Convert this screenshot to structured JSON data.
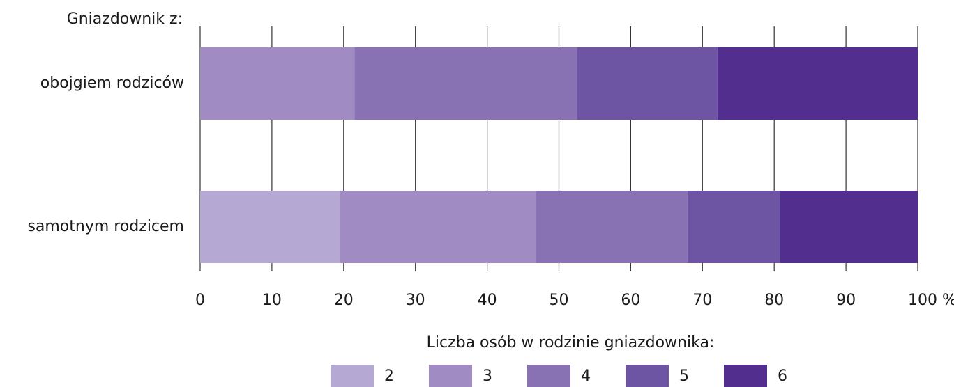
{
  "chart_data": {
    "type": "stacked_bar_horizontal",
    "y_axis_title": "Gniazdownik z:",
    "categories": [
      "obojgiem rodziców",
      "samotnym rodzicem"
    ],
    "series": [
      {
        "name": "2",
        "color": "#b5a9d3",
        "values": [
          0,
          19.5
        ]
      },
      {
        "name": "3",
        "color": "#a08cc3",
        "values": [
          21.5,
          27.3
        ]
      },
      {
        "name": "4",
        "color": "#8872b3",
        "values": [
          31.0,
          21.1
        ]
      },
      {
        "name": "5",
        "color": "#6d55a3",
        "values": [
          19.6,
          12.9
        ]
      },
      {
        "name": "6",
        "color": "#522e8f",
        "values": [
          27.9,
          19.2
        ]
      }
    ],
    "xlim": [
      0,
      100
    ],
    "xticks": [
      0,
      10,
      20,
      30,
      40,
      50,
      60,
      70,
      80,
      90,
      {
        "value": 100,
        "label": "100 %"
      }
    ],
    "grid": true,
    "legend_title": "Liczba osób w rodzinie gniazdownika:",
    "legend_position": "bottom"
  }
}
